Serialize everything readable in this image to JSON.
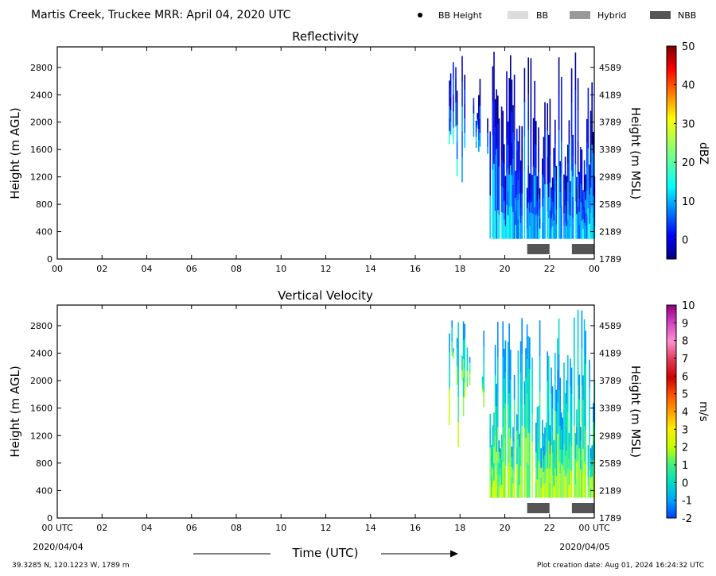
{
  "header": {
    "title": "Martis Creek, Truckee MRR:  April 04, 2020 UTC",
    "legend": [
      {
        "label": "BB Height",
        "kind": "dot",
        "color": "#000000"
      },
      {
        "label": "BB",
        "kind": "bar",
        "color": "#dcdcdc"
      },
      {
        "label": "Hybrid",
        "kind": "bar",
        "color": "#999999"
      },
      {
        "label": "NBB",
        "kind": "bar",
        "color": "#555555"
      }
    ]
  },
  "footer": {
    "location": "39.3285 N, 120.1223 W, 1789 m",
    "creation": "Plot creation date: Aug 01, 2024 16:24:32 UTC",
    "date_start": "2020/04/04",
    "date_end": "2020/04/05",
    "xlabel": "Time (UTC)"
  },
  "chart_data": [
    {
      "type": "heatmap",
      "title": "Reflectivity",
      "ylabel": "Height (m AGL)",
      "y2label": "Height (m MSL)",
      "xlim": [
        0,
        24
      ],
      "ylim": [
        0,
        3100
      ],
      "x_ticks": [
        "00",
        "02",
        "04",
        "06",
        "08",
        "10",
        "12",
        "14",
        "16",
        "18",
        "20",
        "22",
        "00"
      ],
      "y_ticks": [
        0,
        400,
        800,
        1200,
        1600,
        2000,
        2400,
        2800
      ],
      "y2_ticks": [
        "1789",
        "2189",
        "2589",
        "2989",
        "3389",
        "3789",
        "4189",
        "4589"
      ],
      "colorbar": {
        "label": "dBZ",
        "min": -5,
        "max": 50,
        "ticks": [
          "0",
          "10",
          "20",
          "30",
          "40",
          "50"
        ],
        "tick_values": [
          0,
          10,
          20,
          30,
          40,
          50
        ],
        "colormap": "jet"
      },
      "nbb_periods": [
        [
          21.0,
          22.0
        ],
        [
          23.0,
          24.0
        ]
      ],
      "data_span_hours": [
        17.5,
        24.0
      ]
    },
    {
      "type": "heatmap",
      "title": "Vertical Velocity",
      "ylabel": "Height (m AGL)",
      "y2label": "Height (m MSL)",
      "xlim": [
        0,
        24
      ],
      "ylim": [
        0,
        3100
      ],
      "x_ticks": [
        "00 UTC",
        "02",
        "04",
        "06",
        "08",
        "10",
        "12",
        "14",
        "16",
        "18",
        "20",
        "22",
        "00 UTC"
      ],
      "y_ticks": [
        0,
        400,
        800,
        1200,
        1600,
        2000,
        2400,
        2800
      ],
      "y2_ticks": [
        "1789",
        "2189",
        "2589",
        "2989",
        "3389",
        "3789",
        "4189",
        "4589"
      ],
      "colorbar": {
        "label": "m/s",
        "min": -2,
        "max": 10,
        "ticks": [
          "-2",
          "-1",
          "0",
          "1",
          "2",
          "3",
          "4",
          "5",
          "6",
          "7",
          "8",
          "9",
          "10"
        ],
        "tick_values": [
          -2,
          -1,
          0,
          1,
          2,
          3,
          4,
          5,
          6,
          7,
          8,
          9,
          10
        ],
        "colormap": "velocity"
      },
      "nbb_periods": [
        [
          21.0,
          22.0
        ],
        [
          23.0,
          24.0
        ]
      ],
      "data_span_hours": [
        17.5,
        24.0
      ]
    }
  ]
}
